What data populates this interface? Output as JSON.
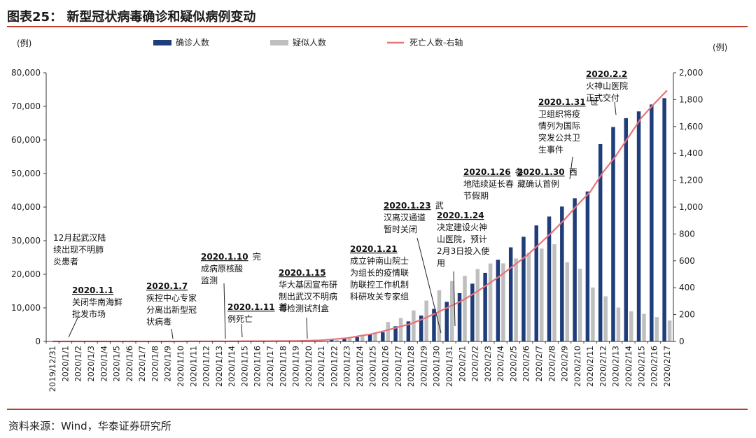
{
  "header": {
    "title": "图表25：  新型冠状病毒确诊和疑似病例变动"
  },
  "footer": {
    "source": "资料来源：Wind，华泰证券研究所"
  },
  "chart_data": {
    "type": "bar",
    "left_unit": "(例)",
    "right_unit": "(例)",
    "legend_position": "top",
    "grid": false,
    "ylim": [
      0,
      80000
    ],
    "y2lim": [
      0,
      2000
    ],
    "yticks": [
      "0",
      "10,000",
      "20,000",
      "30,000",
      "40,000",
      "50,000",
      "60,000",
      "70,000",
      "80,000"
    ],
    "y2ticks": [
      "0",
      "200",
      "400",
      "600",
      "800",
      "1,000",
      "1,200",
      "1,400",
      "1,600",
      "1,800",
      "2,000"
    ],
    "categories": [
      "2019/12/31",
      "2020/1/1",
      "2020/1/2",
      "2020/1/3",
      "2020/1/4",
      "2020/1/5",
      "2020/1/6",
      "2020/1/7",
      "2020/1/8",
      "2020/1/9",
      "2020/1/10",
      "2020/1/11",
      "2020/1/12",
      "2020/1/13",
      "2020/1/14",
      "2020/1/15",
      "2020/1/16",
      "2020/1/17",
      "2020/1/18",
      "2020/1/19",
      "2020/1/20",
      "2020/1/21",
      "2020/1/22",
      "2020/1/23",
      "2020/1/24",
      "2020/1/25",
      "2020/1/26",
      "2020/1/27",
      "2020/1/28",
      "2020/1/29",
      "2020/1/30",
      "2020/1/31",
      "2020/2/1",
      "2020/2/2",
      "2020/2/3",
      "2020/2/4",
      "2020/2/5",
      "2020/2/6",
      "2020/2/7",
      "2020/2/8",
      "2020/2/9",
      "2020/2/10",
      "2020/2/11",
      "2020/2/12",
      "2020/2/13",
      "2020/2/14",
      "2020/2/15",
      "2020/2/16",
      "2020/2/17"
    ],
    "series": [
      {
        "name": "确诊人数",
        "axis": "left",
        "kind": "bar",
        "color": "#1f3d7a",
        "values": [
          0,
          0,
          0,
          0,
          0,
          0,
          0,
          0,
          0,
          0,
          41,
          41,
          41,
          41,
          41,
          41,
          45,
          62,
          121,
          198,
          291,
          440,
          571,
          830,
          1287,
          1975,
          2744,
          4515,
          5974,
          7711,
          9692,
          11791,
          14380,
          17205,
          20438,
          24324,
          28018,
          31161,
          34546,
          37198,
          40171,
          42638,
          44653,
          58761,
          63851,
          66492,
          68500,
          70548,
          72436
        ]
      },
      {
        "name": "疑似人数",
        "axis": "left",
        "kind": "bar",
        "color": "#bfbfbf",
        "values": [
          0,
          0,
          0,
          0,
          0,
          0,
          0,
          0,
          0,
          0,
          0,
          0,
          0,
          0,
          0,
          0,
          0,
          0,
          0,
          0,
          54,
          37,
          393,
          1072,
          1965,
          2684,
          5794,
          6973,
          9239,
          12167,
          15238,
          17988,
          19544,
          21558,
          23214,
          23260,
          24702,
          26359,
          27657,
          28942,
          23589,
          21675,
          16067,
          13435,
          10109,
          8969,
          8228,
          7264,
          6242
        ]
      },
      {
        "name": "死亡人数-右轴",
        "axis": "right",
        "kind": "line",
        "color": "#e8737a",
        "values": [
          0,
          0,
          0,
          0,
          0,
          0,
          0,
          0,
          0,
          0,
          0,
          1,
          1,
          1,
          1,
          2,
          2,
          2,
          3,
          3,
          6,
          9,
          17,
          25,
          41,
          56,
          80,
          106,
          132,
          170,
          213,
          259,
          304,
          361,
          425,
          490,
          563,
          636,
          722,
          811,
          908,
          1016,
          1113,
          1259,
          1380,
          1523,
          1665,
          1770,
          1868
        ]
      }
    ],
    "annotations": [
      {
        "date": "",
        "text": [
          "12月起武汉陆",
          "续出现不明肺",
          "炎患者"
        ]
      },
      {
        "date": "2020.1.1",
        "text": [
          "关闭华南海鲜",
          "批发市场"
        ]
      },
      {
        "date": "2020.1.7",
        "text": [
          "疾控中心专家",
          "分离出新型冠",
          "状病毒"
        ]
      },
      {
        "date": "2020.1.10",
        "date_suffix": "完",
        "text": [
          "成病原核酸",
          "监测"
        ]
      },
      {
        "date": "2020.1.11",
        "date_suffix": "首",
        "text": [
          "例死亡"
        ]
      },
      {
        "date": "2020.1.15",
        "text": [
          "华大基因宣布研",
          "制出武汉不明病",
          "毒检测试剂盒"
        ]
      },
      {
        "date": "2020.1.21",
        "text": [
          "成立钟南山院士",
          "为组长的疫情联",
          "防联控工作机制",
          "科研攻关专家组"
        ]
      },
      {
        "date": "2020.1.23",
        "date_suffix": "武",
        "text": [
          "汉离汉通道",
          "暂时关闭"
        ]
      },
      {
        "date": "2020.1.24",
        "text": [
          "决定建设火神",
          "山医院，预计",
          "2月3日投入使",
          "用"
        ]
      },
      {
        "date": "2020.1.26",
        "date_suffix": "各",
        "text": [
          "地陆续延长春",
          "节假期"
        ]
      },
      {
        "date": "2020.1.30",
        "date_suffix": "西",
        "text": [
          "藏确认首例"
        ]
      },
      {
        "date": "2020.1.31",
        "date_suffix": "世",
        "text": [
          "卫组织将疫",
          "情列为国际",
          "突发公共卫",
          "生事件"
        ]
      },
      {
        "date": "2020.2.2",
        "text": [
          "火神山医院",
          "正式交付"
        ]
      }
    ]
  }
}
